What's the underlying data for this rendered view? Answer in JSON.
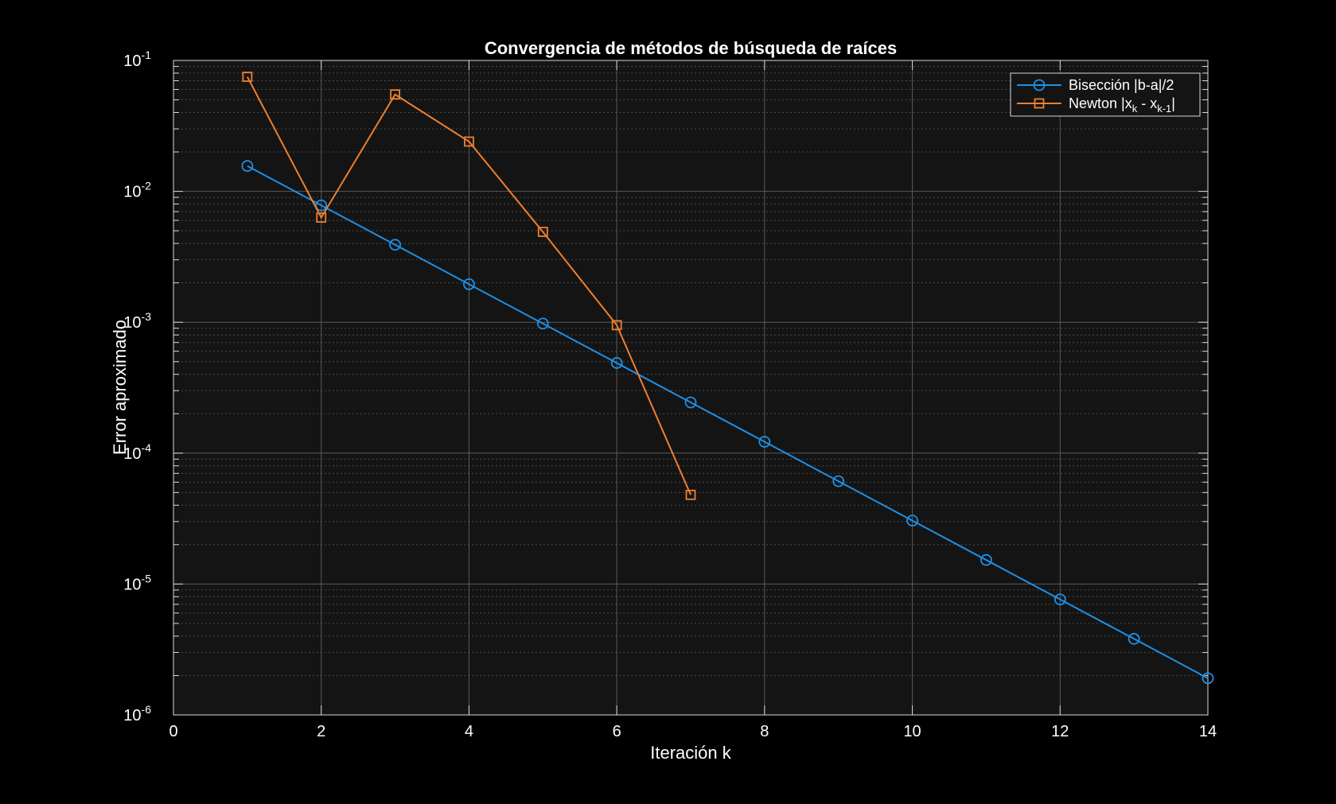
{
  "chart_data": {
    "type": "line",
    "title": "Convergencia de métodos de búsqueda de raíces",
    "xlabel": "Iteración k",
    "ylabel": "Error aproximado",
    "xlim": [
      0,
      14
    ],
    "ylim": [
      1e-06,
      0.1
    ],
    "yscale": "log",
    "grid": true,
    "minor_grid": true,
    "legend_position": "top-right",
    "background": "#000000",
    "axes_background": "#141414",
    "x_ticks": [
      0,
      2,
      4,
      6,
      8,
      10,
      12,
      14
    ],
    "x_tick_labels": [
      "0",
      "2",
      "4",
      "6",
      "8",
      "10",
      "12",
      "14"
    ],
    "y_tick_base": "10",
    "y_tick_exponents": [
      "-1",
      "-2",
      "-3",
      "-4",
      "-5",
      "-6"
    ],
    "series": [
      {
        "name": "Bisección |b-a|/2",
        "legend_parts": [
          {
            "text": "Bisección |b-a|/2"
          }
        ],
        "color": "#1f8fe5",
        "marker": "circle",
        "x": [
          1,
          2,
          3,
          4,
          5,
          6,
          7,
          8,
          9,
          10,
          11,
          12,
          13,
          14
        ],
        "y": [
          0.015625,
          0.0078125,
          0.00390625,
          0.001953125,
          0.0009765625,
          0.00048828125,
          0.000244140625,
          0.0001220703125,
          6.103515625e-05,
          3.0517578125e-05,
          1.52587890625e-05,
          7.62939453125e-06,
          3.814697265625e-06,
          1.9073486328125e-06
        ]
      },
      {
        "name": "Newton |xk - xk-1|",
        "legend_parts": [
          {
            "text": "Newton  |x"
          },
          {
            "text": "k",
            "sub": true
          },
          {
            "text": "  -  x"
          },
          {
            "text": "k-1",
            "sub": true
          },
          {
            "text": "|"
          }
        ],
        "color": "#f07f2e",
        "marker": "square",
        "x": [
          1,
          2,
          3,
          4,
          5,
          6,
          7
        ],
        "y": [
          0.075,
          0.0063,
          0.055,
          0.024,
          0.0049,
          0.00095,
          4.8e-05
        ]
      }
    ]
  }
}
